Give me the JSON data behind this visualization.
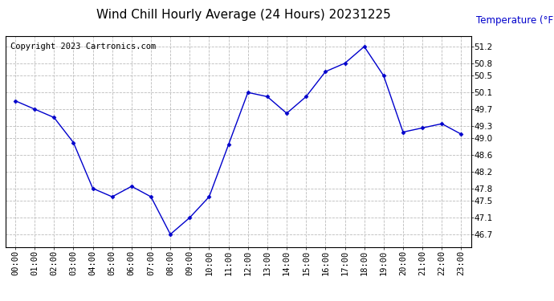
{
  "title": "Wind Chill Hourly Average (24 Hours) 20231225",
  "ylabel": "Temperature (°F)",
  "copyright": "Copyright 2023 Cartronics.com",
  "line_color": "#0000CC",
  "ylabel_color": "#0000CC",
  "background_color": "#ffffff",
  "grid_color": "#bbbbbb",
  "hours": [
    "00:00",
    "01:00",
    "02:00",
    "03:00",
    "04:00",
    "05:00",
    "06:00",
    "07:00",
    "08:00",
    "09:00",
    "10:00",
    "11:00",
    "12:00",
    "13:00",
    "14:00",
    "15:00",
    "16:00",
    "17:00",
    "18:00",
    "19:00",
    "20:00",
    "21:00",
    "22:00",
    "23:00"
  ],
  "values": [
    49.9,
    49.7,
    49.5,
    48.9,
    47.8,
    47.6,
    47.85,
    47.6,
    46.7,
    47.1,
    47.6,
    48.85,
    50.1,
    50.0,
    49.6,
    50.0,
    50.6,
    50.8,
    51.2,
    50.5,
    49.15,
    49.25,
    49.35,
    49.1
  ],
  "ylim_min": 46.4,
  "ylim_max": 51.45,
  "yticks": [
    46.7,
    47.1,
    47.5,
    47.8,
    48.2,
    48.6,
    49.0,
    49.3,
    49.7,
    50.1,
    50.5,
    50.8,
    51.2
  ],
  "title_fontsize": 11,
  "copyright_fontsize": 7.5,
  "ylabel_fontsize": 8.5,
  "tick_fontsize": 7.5
}
